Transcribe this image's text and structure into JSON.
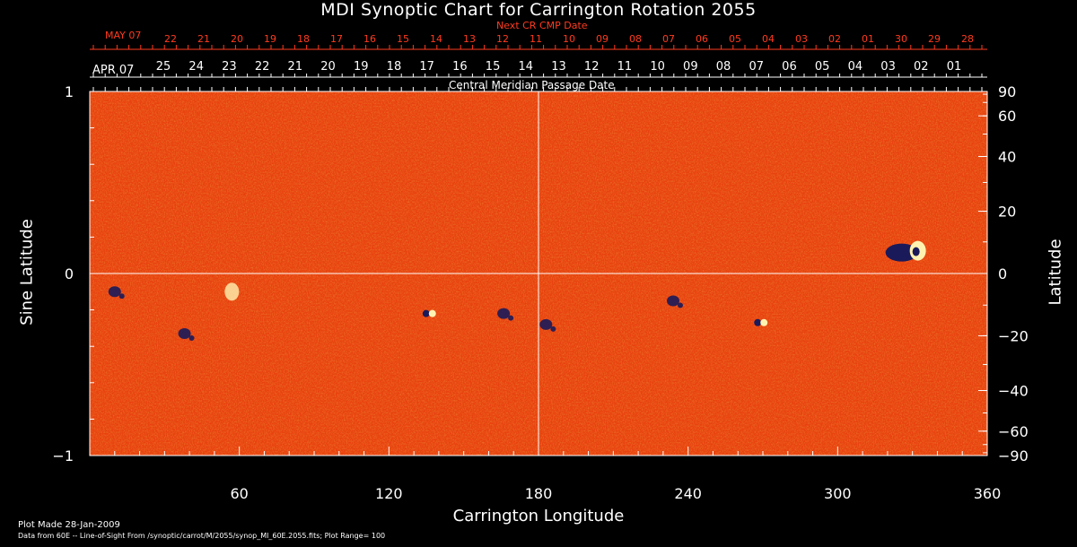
{
  "chart_data": {
    "type": "heatmap",
    "title": "MDI Synoptic Chart for Carrington Rotation 2055",
    "xlabel": "Carrington Longitude",
    "ylabel_left": "Sine Latitude",
    "ylabel_right": "Latitude",
    "xlim": [
      0,
      360
    ],
    "ylim": [
      -1,
      1
    ],
    "x_ticks": [
      "60",
      "120",
      "180",
      "240",
      "300",
      "360"
    ],
    "y_left_ticks": [
      "1",
      "0",
      "−1"
    ],
    "y_right_ticks": [
      "90",
      "60",
      "40",
      "20",
      "0",
      "−20",
      "−40",
      "−60",
      "−90"
    ],
    "y_right_values": [
      90,
      60,
      40,
      20,
      0,
      -20,
      -40,
      -60,
      -90
    ],
    "gridlines": {
      "vertical_at_longitude": 180,
      "horizontal_at_sine_latitude": 0
    },
    "top_axis_next": {
      "label": "Next CR CMP Date",
      "month_label": "MAY 07",
      "dates": [
        "22",
        "21",
        "20",
        "19",
        "18",
        "17",
        "16",
        "15",
        "14",
        "13",
        "12",
        "11",
        "10",
        "09",
        "08",
        "07",
        "06",
        "05",
        "04",
        "03",
        "02",
        "01",
        "30",
        "29",
        "28"
      ]
    },
    "top_axis_cmp": {
      "label": "Central Meridian Passage Date",
      "month_label": "APR 07",
      "dates": [
        "25",
        "24",
        "23",
        "22",
        "21",
        "20",
        "19",
        "18",
        "17",
        "16",
        "15",
        "14",
        "13",
        "12",
        "11",
        "10",
        "09",
        "08",
        "07",
        "06",
        "05",
        "04",
        "03",
        "02",
        "01"
      ]
    },
    "colors": {
      "background": "#000000",
      "map_base": "#e8400f",
      "positive": "#fff2b0",
      "negative": "#1a1a5a",
      "red_labels": "#ff3b1f"
    },
    "features": [
      {
        "longitude": 330,
        "sine_latitude": 0.12,
        "polarity": "strong-bipolar"
      },
      {
        "longitude": 269,
        "sine_latitude": -0.27,
        "polarity": "bipolar"
      },
      {
        "longitude": 136,
        "sine_latitude": -0.22,
        "polarity": "bipolar"
      },
      {
        "longitude": 57,
        "sine_latitude": -0.1,
        "polarity": "positive"
      },
      {
        "longitude": 234,
        "sine_latitude": -0.15,
        "polarity": "negative"
      },
      {
        "longitude": 166,
        "sine_latitude": -0.22,
        "polarity": "negative"
      },
      {
        "longitude": 183,
        "sine_latitude": -0.28,
        "polarity": "negative"
      },
      {
        "longitude": 38,
        "sine_latitude": -0.33,
        "polarity": "negative"
      },
      {
        "longitude": 10,
        "sine_latitude": -0.1,
        "polarity": "negative"
      }
    ]
  },
  "footer": {
    "plot_made": "Plot Made 28-Jan-2009",
    "data_source": "Data from 60E -- Line-of-Sight From /synoptic/carrot/M/2055/synop_Ml_60E.2055.fits; Plot Range= 100"
  }
}
